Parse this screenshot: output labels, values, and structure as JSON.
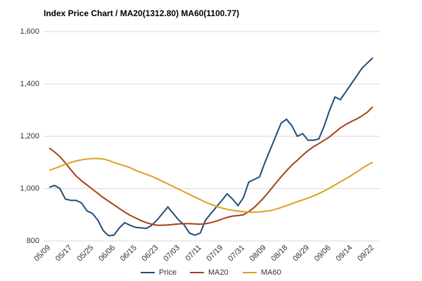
{
  "chart_data": {
    "type": "line",
    "title": "Index Price Chart / MA20(1312.80) MA60(1100.77)",
    "categories": [
      "05/09",
      null,
      null,
      null,
      "05/17",
      null,
      null,
      null,
      "05/25",
      null,
      null,
      null,
      "06/06",
      null,
      null,
      null,
      "06/15",
      null,
      null,
      null,
      "06/23",
      null,
      null,
      null,
      "07/03",
      null,
      null,
      null,
      "07/11",
      null,
      null,
      null,
      "07/19",
      null,
      null,
      null,
      "07/31",
      null,
      null,
      null,
      "08/09",
      null,
      null,
      null,
      "08/18",
      null,
      null,
      null,
      "08/29",
      null,
      null,
      null,
      "09/06",
      null,
      null,
      null,
      "09/14",
      null,
      null,
      null,
      "09/22"
    ],
    "series": [
      {
        "name": "Price",
        "color": "#1f4e79",
        "values": [
          1005,
          1012,
          1000,
          960,
          955,
          955,
          945,
          915,
          905,
          880,
          840,
          820,
          822,
          850,
          870,
          860,
          852,
          850,
          848,
          860,
          880,
          905,
          930,
          905,
          880,
          862,
          830,
          822,
          830,
          880,
          905,
          930,
          955,
          980,
          960,
          935,
          965,
          1025,
          1035,
          1045,
          1100,
          1150,
          1200,
          1250,
          1265,
          1240,
          1200,
          1210,
          1185,
          1185,
          1190,
          1240,
          1300,
          1350,
          1340,
          1370,
          1400,
          1430,
          1460,
          1480,
          1500
        ]
      },
      {
        "name": "MA20",
        "color": "#a5401b",
        "values": [
          1155,
          1140,
          1122,
          1098,
          1072,
          1048,
          1030,
          1014,
          998,
          982,
          966,
          952,
          938,
          924,
          910,
          898,
          888,
          878,
          870,
          864,
          860,
          860,
          861,
          863,
          865,
          866,
          866,
          865,
          864,
          866,
          870,
          876,
          883,
          890,
          895,
          897,
          900,
          912,
          928,
          948,
          970,
          995,
          1020,
          1045,
          1068,
          1090,
          1108,
          1128,
          1145,
          1160,
          1172,
          1185,
          1198,
          1215,
          1232,
          1245,
          1256,
          1266,
          1278,
          1292,
          1312.8
        ]
      },
      {
        "name": "MA60",
        "color": "#d9a21b",
        "values": [
          1070,
          1077,
          1085,
          1093,
          1100,
          1106,
          1110,
          1113,
          1115,
          1115,
          1113,
          1108,
          1100,
          1093,
          1087,
          1080,
          1070,
          1062,
          1055,
          1047,
          1038,
          1028,
          1018,
          1008,
          998,
          988,
          978,
          968,
          958,
          948,
          940,
          932,
          926,
          921,
          917,
          914,
          912,
          910,
          910,
          911,
          913,
          916,
          921,
          928,
          935,
          942,
          950,
          957,
          964,
          972,
          981,
          991,
          1002,
          1014,
          1026,
          1038,
          1050,
          1063,
          1077,
          1090,
          1100.77
        ]
      }
    ],
    "ylim": [
      800,
      1600
    ],
    "yticks": [
      {
        "value": 800,
        "label": "800"
      },
      {
        "value": 1000,
        "label": "1,000"
      },
      {
        "value": 1200,
        "label": "1,200"
      },
      {
        "value": 1400,
        "label": "1,400"
      },
      {
        "value": 1600,
        "label": "1,600"
      }
    ],
    "grid": true,
    "legend": "bottom"
  }
}
